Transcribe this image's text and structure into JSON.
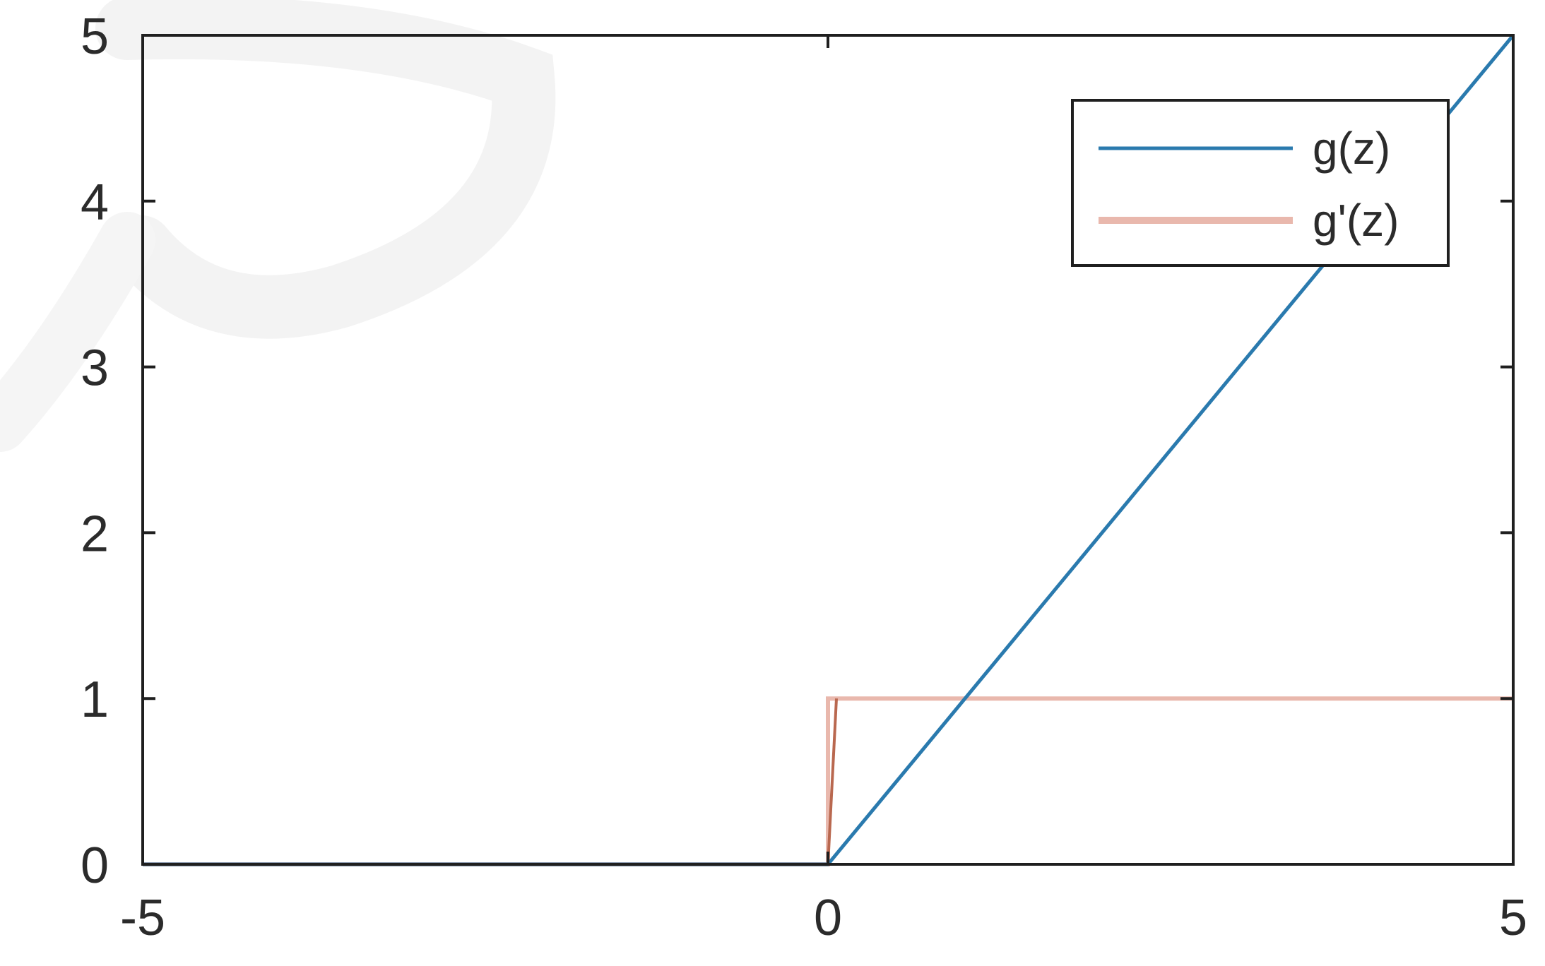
{
  "chart_data": {
    "type": "line",
    "title": "",
    "xlabel": "",
    "ylabel": "",
    "xlim": [
      -5,
      5
    ],
    "ylim": [
      0,
      5
    ],
    "x_ticks": [
      -5,
      0,
      5
    ],
    "y_ticks": [
      0,
      1,
      2,
      3,
      4,
      5
    ],
    "x_tick_labels": [
      "-5",
      "0",
      "5"
    ],
    "y_tick_labels": [
      "0",
      "1",
      "2",
      "3",
      "4",
      "5"
    ],
    "grid": false,
    "legend_position": "top-right",
    "series": [
      {
        "name": "g(z)",
        "color": "#2a7aae",
        "points": [
          [
            -5,
            0
          ],
          [
            0,
            0
          ],
          [
            5,
            5
          ]
        ]
      },
      {
        "name": "g'(z)",
        "color": "#e9b8ad",
        "points": [
          [
            -5,
            0
          ],
          [
            0,
            0
          ],
          [
            0,
            1
          ],
          [
            5,
            1
          ]
        ]
      }
    ]
  }
}
